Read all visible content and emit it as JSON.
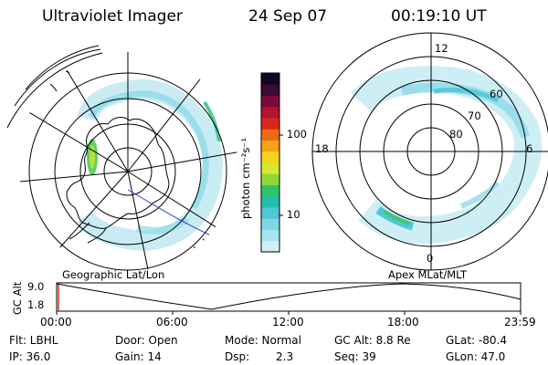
{
  "header": {
    "instrument": "Ultraviolet Imager",
    "date": "24 Sep 07",
    "time": "00:19:10 UT"
  },
  "colorbar": {
    "unit_label": "photon cm⁻²s⁻¹",
    "ticks": [
      "100",
      "10"
    ],
    "colors": [
      "#cfeff6",
      "#a7e4ee",
      "#7fd7e4",
      "#4ec8d8",
      "#22bfa6",
      "#2ec46a",
      "#8fd83a",
      "#d7ea2a",
      "#f4d21e",
      "#f5a21c",
      "#ec6a14",
      "#d8281a",
      "#b4122e",
      "#7a0a3a",
      "#3a0a32",
      "#14061e"
    ]
  },
  "left_panel": {
    "label": "Geographic Lat/Lon"
  },
  "right_panel": {
    "label": "Apex MLat/MLT",
    "mlt_labels": [
      "12",
      "18",
      "6",
      "0"
    ],
    "mlat_labels": [
      "60",
      "70",
      "80"
    ]
  },
  "altitude_strip": {
    "axis_label": "GC Alt",
    "y_ticks": [
      "9.0",
      "1.8"
    ],
    "x_ticks": [
      "00:00",
      "06:00",
      "12:00",
      "18:00",
      "23:59"
    ]
  },
  "info": {
    "filter": "Flt: LBHL",
    "ip": "IP: 36.0",
    "door": "Door: Open",
    "gain": "Gain: 14",
    "mode": "Mode: Normal",
    "dsp": "Dsp:",
    "dsp_value": "2.3",
    "gc_alt": "GC Alt: 8.8 Re",
    "seq": "Seq: 39",
    "glat": "GLat: -80.4",
    "glon": "GLon: 47.0"
  }
}
